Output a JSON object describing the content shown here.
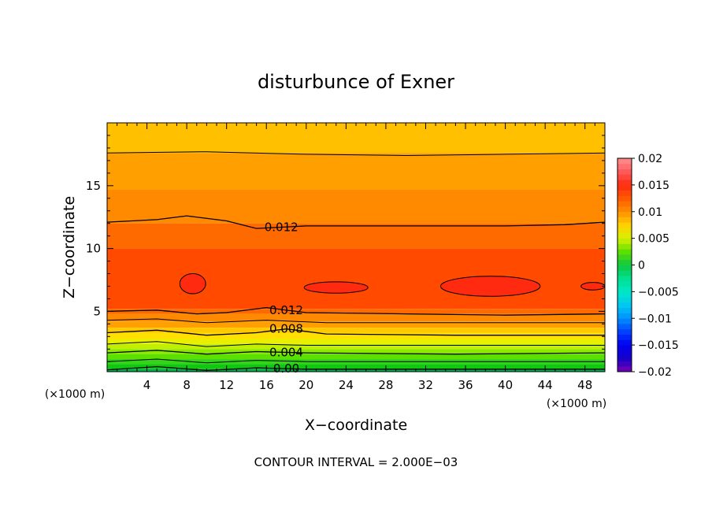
{
  "chart_data": {
    "type": "contour",
    "title": "disturbunce of Exner",
    "xlabel": "X−coordinate",
    "ylabel": "Z−coordinate",
    "x_unit_left": "(×1000 m)",
    "x_unit_right": "(×1000 m)",
    "xlim": [
      0,
      50
    ],
    "ylim": [
      0.2,
      20
    ],
    "x_ticks": [
      4,
      8,
      12,
      16,
      20,
      24,
      28,
      32,
      36,
      40,
      44,
      48
    ],
    "y_ticks": [
      5,
      10,
      15
    ],
    "contour_interval_label": "CONTOUR INTERVAL = 2.000E−03",
    "levels": [
      {
        "min": -0.001,
        "max": 0.0,
        "color": "#00b050"
      },
      {
        "min": 0.0,
        "max": 0.001,
        "color": "#10c810"
      },
      {
        "min": 0.001,
        "max": 0.002,
        "color": "#33d41a"
      },
      {
        "min": 0.002,
        "max": 0.003,
        "color": "#5ce000"
      },
      {
        "min": 0.003,
        "max": 0.004,
        "color": "#8cea00"
      },
      {
        "min": 0.004,
        "max": 0.005,
        "color": "#c0f000"
      },
      {
        "min": 0.005,
        "max": 0.006,
        "color": "#e8f000"
      },
      {
        "min": 0.006,
        "max": 0.007,
        "color": "#ffe000"
      },
      {
        "min": 0.007,
        "max": 0.008,
        "color": "#ffc800"
      },
      {
        "min": 0.008,
        "max": 0.009,
        "color": "#ffb000"
      },
      {
        "min": 0.009,
        "max": 0.01,
        "color": "#ffa000"
      },
      {
        "min": 0.01,
        "max": 0.011,
        "color": "#ff8a00"
      },
      {
        "min": 0.011,
        "max": 0.012,
        "color": "#ff6a00"
      },
      {
        "min": 0.012,
        "max": 0.013,
        "color": "#ff4a00"
      },
      {
        "min": 0.013,
        "max": 0.014,
        "color": "#ff2a10"
      }
    ],
    "bands": [
      {
        "z_top": 20,
        "z_bottom": 17.6,
        "color": "#ffc000"
      },
      {
        "z_top": 17.6,
        "z_bottom": 14.7,
        "color": "#ffa000"
      },
      {
        "z_top": 14.7,
        "z_bottom": 12.0,
        "color": "#ff8a00"
      },
      {
        "z_top": 12.0,
        "z_bottom": 10.0,
        "color": "#ff6a00"
      },
      {
        "z_top": 10.0,
        "z_bottom": 5.2,
        "color": "#ff4a00"
      },
      {
        "z_top": 5.2,
        "z_bottom": 4.8,
        "color": "#ff6a00"
      },
      {
        "z_top": 4.8,
        "z_bottom": 4.2,
        "color": "#ff8a00"
      },
      {
        "z_top": 4.2,
        "z_bottom": 3.7,
        "color": "#ffa000"
      },
      {
        "z_top": 3.7,
        "z_bottom": 3.3,
        "color": "#ffc800"
      },
      {
        "z_top": 3.3,
        "z_bottom": 2.8,
        "color": "#ffe000"
      },
      {
        "z_top": 2.8,
        "z_bottom": 2.4,
        "color": "#e8f000"
      },
      {
        "z_top": 2.4,
        "z_bottom": 2.0,
        "color": "#c0f000"
      },
      {
        "z_top": 2.0,
        "z_bottom": 1.6,
        "color": "#8cea00"
      },
      {
        "z_top": 1.6,
        "z_bottom": 1.2,
        "color": "#5ce000"
      },
      {
        "z_top": 1.2,
        "z_bottom": 0.8,
        "color": "#33d41a"
      },
      {
        "z_top": 0.8,
        "z_bottom": 0.4,
        "color": "#10c810"
      },
      {
        "z_top": 0.4,
        "z_bottom": 0.2,
        "color": "#00b050"
      }
    ],
    "contour_lines": [
      {
        "level": 0.01,
        "points": [
          [
            0,
            17.6
          ],
          [
            10,
            17.7
          ],
          [
            20,
            17.5
          ],
          [
            30,
            17.4
          ],
          [
            40,
            17.5
          ],
          [
            50,
            17.6
          ]
        ],
        "labeled": false
      },
      {
        "level": 0.012,
        "points": [
          [
            0,
            12.1
          ],
          [
            5,
            12.3
          ],
          [
            8,
            12.6
          ],
          [
            12,
            12.2
          ],
          [
            15,
            11.6
          ],
          [
            20,
            11.8
          ],
          [
            30,
            11.8
          ],
          [
            40,
            11.8
          ],
          [
            46,
            11.9
          ],
          [
            50,
            12.1
          ]
        ],
        "labeled": true,
        "label": "0.012",
        "label_x": 17.5
      },
      {
        "level": 0.012,
        "points": [
          [
            0,
            5.0
          ],
          [
            5,
            5.1
          ],
          [
            9,
            4.8
          ],
          [
            12,
            4.9
          ],
          [
            16,
            5.3
          ],
          [
            20,
            4.9
          ],
          [
            30,
            4.8
          ],
          [
            40,
            4.7
          ],
          [
            50,
            4.8
          ]
        ],
        "labeled": true,
        "label": "0.012",
        "label_x": 18
      },
      {
        "level": 0.01,
        "points": [
          [
            0,
            4.3
          ],
          [
            5,
            4.4
          ],
          [
            10,
            4.1
          ],
          [
            16,
            4.3
          ],
          [
            22,
            4.1
          ],
          [
            35,
            4.1
          ],
          [
            50,
            4.1
          ]
        ],
        "labeled": false
      },
      {
        "level": 0.008,
        "points": [
          [
            0,
            3.3
          ],
          [
            5,
            3.5
          ],
          [
            10,
            3.1
          ],
          [
            15,
            3.3
          ],
          [
            18,
            3.6
          ],
          [
            22,
            3.2
          ],
          [
            35,
            3.1
          ],
          [
            50,
            3.1
          ]
        ],
        "labeled": true,
        "label": "0.008",
        "label_x": 18
      },
      {
        "level": 0.006,
        "points": [
          [
            0,
            2.4
          ],
          [
            5,
            2.6
          ],
          [
            10,
            2.2
          ],
          [
            15,
            2.4
          ],
          [
            20,
            2.3
          ],
          [
            35,
            2.3
          ],
          [
            50,
            2.3
          ]
        ],
        "labeled": false
      },
      {
        "level": 0.004,
        "points": [
          [
            0,
            1.7
          ],
          [
            5,
            1.9
          ],
          [
            10,
            1.6
          ],
          [
            15,
            1.8
          ],
          [
            20,
            1.7
          ],
          [
            35,
            1.6
          ],
          [
            50,
            1.7
          ]
        ],
        "labeled": true,
        "label": "0.004",
        "label_x": 18
      },
      {
        "level": 0.002,
        "points": [
          [
            0,
            1.0
          ],
          [
            5,
            1.2
          ],
          [
            10,
            0.9
          ],
          [
            15,
            1.1
          ],
          [
            20,
            1.0
          ],
          [
            35,
            1.0
          ],
          [
            50,
            1.0
          ]
        ],
        "labeled": false
      },
      {
        "level": 0.0,
        "points": [
          [
            0,
            0.35
          ],
          [
            5,
            0.6
          ],
          [
            10,
            0.3
          ],
          [
            15,
            0.5
          ],
          [
            20,
            0.4
          ],
          [
            35,
            0.4
          ],
          [
            50,
            0.4
          ]
        ],
        "labeled": true,
        "label": "0.00",
        "label_x": 18
      }
    ],
    "cells": [
      {
        "cx": 8.6,
        "cz": 7.2,
        "rx": 1.3,
        "rz": 0.8,
        "color": "#ff2a10"
      },
      {
        "cx": 23.0,
        "cz": 6.9,
        "rx": 3.2,
        "rz": 0.45,
        "color": "#ff2a10"
      },
      {
        "cx": 38.5,
        "cz": 7.0,
        "rx": 5.0,
        "rz": 0.8,
        "color": "#ff2a10"
      },
      {
        "cx": 48.8,
        "cz": 7.0,
        "rx": 1.2,
        "rz": 0.3,
        "color": "#ff2a10"
      }
    ],
    "colorbar": {
      "min": -0.02,
      "max": 0.02,
      "step": 0.001,
      "tick_labels": [
        "0.02",
        "0.015",
        "0.01",
        "0.005",
        "0",
        "−0.005",
        "−0.01",
        "−0.015",
        "−0.02"
      ],
      "tick_values": [
        0.02,
        0.015,
        0.01,
        0.005,
        0,
        -0.005,
        -0.01,
        -0.015,
        -0.02
      ],
      "stops": [
        {
          "v": -0.02,
          "color": "#7b00b4"
        },
        {
          "v": -0.0175,
          "color": "#1800c8"
        },
        {
          "v": -0.015,
          "color": "#0000f0"
        },
        {
          "v": -0.0125,
          "color": "#0040ff"
        },
        {
          "v": -0.01,
          "color": "#0090ff"
        },
        {
          "v": -0.0075,
          "color": "#00c8f0"
        },
        {
          "v": -0.005,
          "color": "#00e8c8"
        },
        {
          "v": -0.0025,
          "color": "#00e090"
        },
        {
          "v": 0.0,
          "color": "#10c840"
        },
        {
          "v": 0.0025,
          "color": "#5ce000"
        },
        {
          "v": 0.005,
          "color": "#d8f000"
        },
        {
          "v": 0.0075,
          "color": "#ffd000"
        },
        {
          "v": 0.01,
          "color": "#ff9000"
        },
        {
          "v": 0.0125,
          "color": "#ff5a00"
        },
        {
          "v": 0.015,
          "color": "#ff2a10"
        },
        {
          "v": 0.0175,
          "color": "#ff5a5a"
        },
        {
          "v": 0.02,
          "color": "#ff9090"
        }
      ]
    }
  }
}
